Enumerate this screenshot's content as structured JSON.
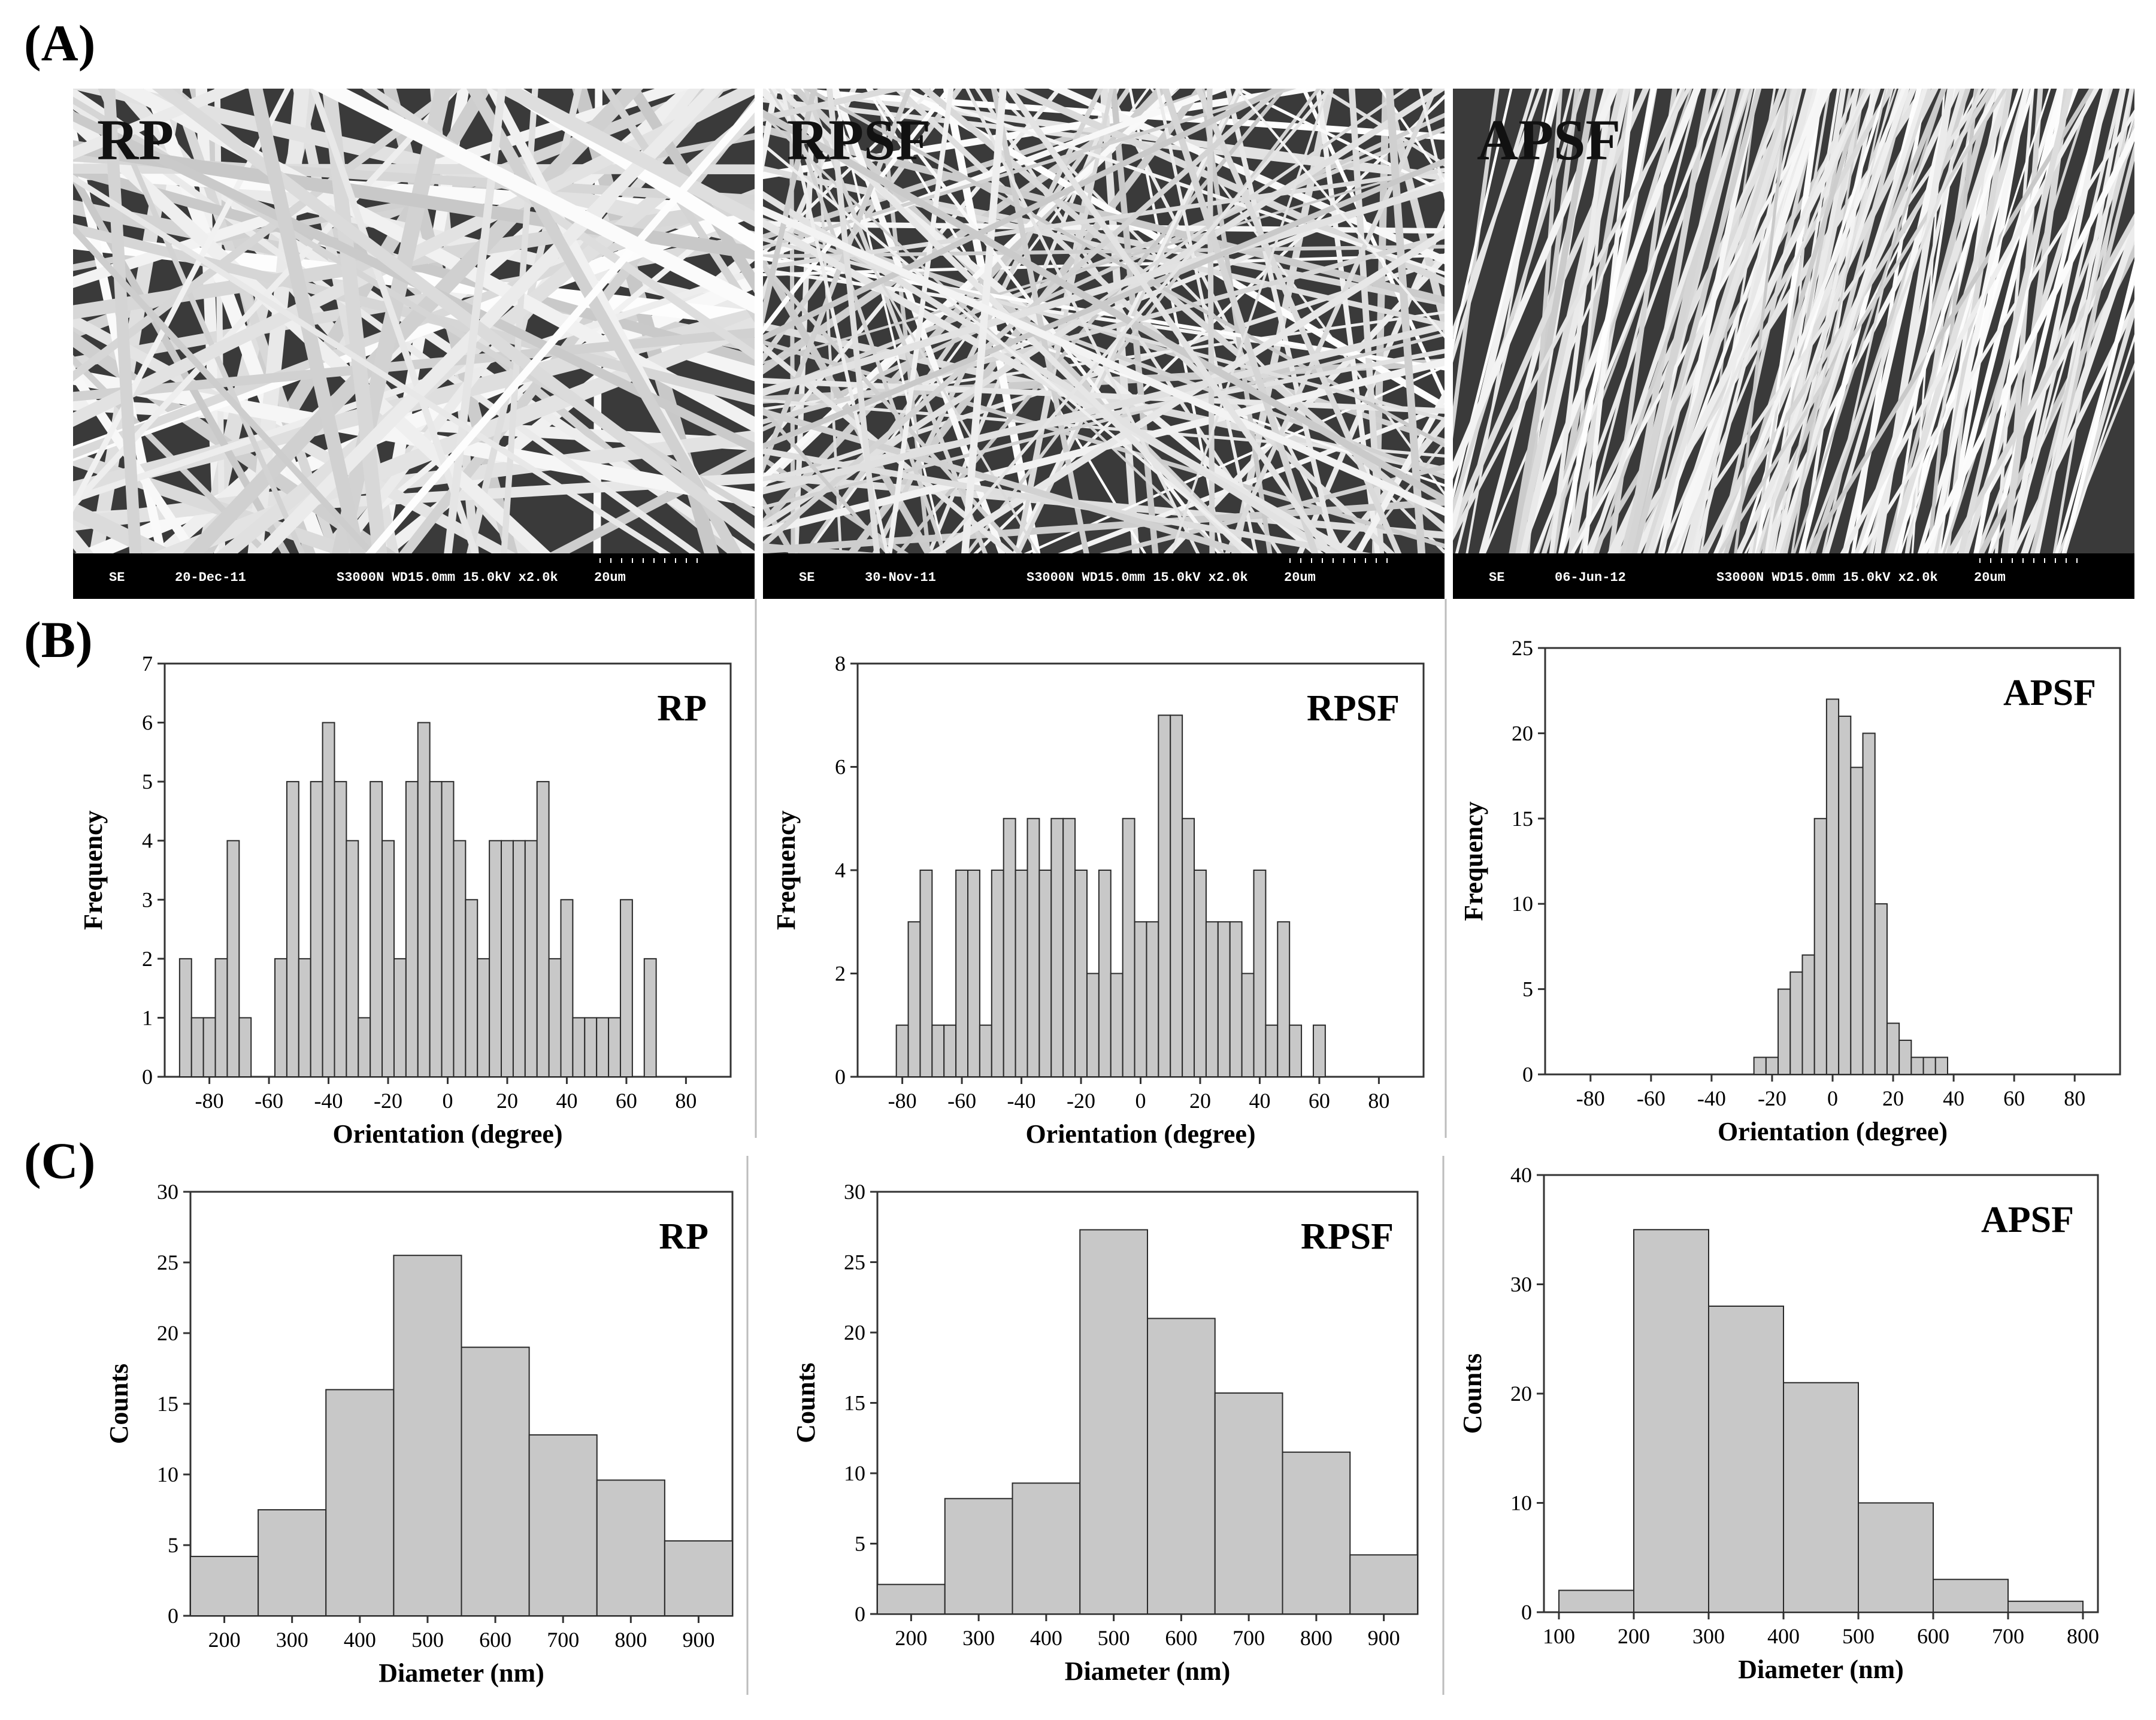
{
  "figure": {
    "row_labels": {
      "a": "(A)",
      "b": "(B)",
      "c": "(C)"
    }
  },
  "sem_images": [
    {
      "name": "RP",
      "caption": {
        "mode": "SE",
        "date": "20-Dec-11",
        "info": "S3000N WD15.0mm 15.0kV x2.0k",
        "scale": "20um"
      },
      "pattern": "random-thick"
    },
    {
      "name": "RPSF",
      "caption": {
        "mode": "SE",
        "date": "30-Nov-11",
        "info": "S3000N WD15.0mm 15.0kV x2.0k",
        "scale": "20um"
      },
      "pattern": "random-thin"
    },
    {
      "name": "APSF",
      "caption": {
        "mode": "SE",
        "date": "06-Jun-12",
        "info": "S3000N WD15.0mm 15.0kV x2.0k",
        "scale": "20um"
      },
      "pattern": "aligned"
    }
  ],
  "chart_data": [
    {
      "type": "bar",
      "row": "B",
      "title": "RP",
      "xlabel": "Orientation (degree)",
      "ylabel": "Frequency",
      "xlim": [
        -95,
        95
      ],
      "ylim": [
        0,
        7
      ],
      "xticks": [
        -80,
        -60,
        -40,
        -20,
        0,
        20,
        40,
        60,
        80
      ],
      "yticks": [
        0,
        1,
        2,
        3,
        4,
        5,
        6,
        7
      ],
      "bin_width": 4,
      "x": [
        -88,
        -84,
        -80,
        -76,
        -72,
        -68,
        -64,
        -56,
        -52,
        -48,
        -44,
        -40,
        -36,
        -32,
        -28,
        -24,
        -20,
        -16,
        -12,
        -8,
        -4,
        0,
        4,
        8,
        12,
        16,
        20,
        24,
        28,
        32,
        36,
        40,
        44,
        48,
        52,
        56,
        60,
        64,
        68,
        72,
        76,
        84
      ],
      "values": [
        2,
        1,
        1,
        2,
        4,
        1,
        0,
        2,
        5,
        2,
        5,
        6,
        5,
        4,
        1,
        5,
        4,
        2,
        5,
        6,
        5,
        5,
        4,
        3,
        2,
        4,
        4,
        4,
        4,
        5,
        2,
        3,
        1,
        1,
        1,
        1,
        3,
        0,
        2,
        0,
        0,
        0
      ]
    },
    {
      "type": "bar",
      "row": "B",
      "title": "RPSF",
      "xlabel": "Orientation (degree)",
      "ylabel": "Frequency",
      "xlim": [
        -95,
        95
      ],
      "ylim": [
        0,
        8
      ],
      "xticks": [
        -80,
        -60,
        -40,
        -20,
        0,
        20,
        40,
        60,
        80
      ],
      "yticks": [
        0,
        2,
        4,
        6,
        8
      ],
      "bin_width": 4,
      "x": [
        -80,
        -76,
        -72,
        -68,
        -64,
        -60,
        -56,
        -52,
        -48,
        -44,
        -40,
        -36,
        -32,
        -28,
        -24,
        -20,
        -16,
        -12,
        -8,
        -4,
        0,
        4,
        8,
        12,
        16,
        20,
        24,
        28,
        32,
        36,
        40,
        44,
        48,
        52,
        56,
        60,
        64,
        68,
        72,
        76,
        80,
        84
      ],
      "values": [
        1,
        3,
        4,
        1,
        1,
        4,
        4,
        1,
        4,
        5,
        4,
        5,
        4,
        5,
        5,
        4,
        2,
        4,
        2,
        5,
        3,
        3,
        7,
        7,
        5,
        4,
        3,
        3,
        3,
        2,
        4,
        1,
        3,
        1,
        0,
        1,
        0,
        0,
        0,
        0,
        0,
        0
      ]
    },
    {
      "type": "bar",
      "row": "B",
      "title": "APSF",
      "xlabel": "Orientation (degree)",
      "ylabel": "Frequency",
      "xlim": [
        -95,
        95
      ],
      "ylim": [
        0,
        25
      ],
      "xticks": [
        -80,
        -60,
        -40,
        -20,
        0,
        20,
        40,
        60,
        80
      ],
      "yticks": [
        0,
        5,
        10,
        15,
        20,
        25
      ],
      "bin_width": 4,
      "x": [
        -24,
        -20,
        -16,
        -12,
        -8,
        -4,
        0,
        4,
        8,
        12,
        16,
        20,
        24,
        28,
        32,
        36,
        40
      ],
      "values": [
        1,
        1,
        5,
        6,
        7,
        15,
        22,
        21,
        18,
        20,
        10,
        3,
        2,
        1,
        1,
        1,
        0
      ]
    },
    {
      "type": "bar",
      "row": "C",
      "title": "RP",
      "xlabel": "Diameter (nm)",
      "ylabel": "Counts",
      "xlim": [
        150,
        950
      ],
      "ylim": [
        0,
        30
      ],
      "xticks": [
        200,
        300,
        400,
        500,
        600,
        700,
        800,
        900
      ],
      "yticks": [
        0,
        5,
        10,
        15,
        20,
        25,
        30
      ],
      "bin_width": 100,
      "x": [
        200,
        300,
        400,
        500,
        600,
        700,
        800,
        900
      ],
      "values": [
        4.2,
        7.5,
        16,
        25.5,
        19,
        12.8,
        9.6,
        5.3
      ]
    },
    {
      "type": "bar",
      "row": "C",
      "title": "RPSF",
      "xlabel": "Diameter (nm)",
      "ylabel": "Counts",
      "xlim": [
        150,
        950
      ],
      "ylim": [
        0,
        30
      ],
      "xticks": [
        200,
        300,
        400,
        500,
        600,
        700,
        800,
        900
      ],
      "yticks": [
        0,
        5,
        10,
        15,
        20,
        25,
        30
      ],
      "bin_width": 100,
      "x": [
        200,
        300,
        400,
        500,
        600,
        700,
        800,
        900
      ],
      "values": [
        2.1,
        8.2,
        9.3,
        27.3,
        21,
        15.7,
        11.5,
        4.2
      ]
    },
    {
      "type": "bar",
      "row": "C",
      "title": "APSF",
      "xlabel": "Diameter (nm)",
      "ylabel": "Counts",
      "xlim": [
        80,
        820
      ],
      "ylim": [
        0,
        40
      ],
      "xticks": [
        100,
        200,
        300,
        400,
        500,
        600,
        700,
        800
      ],
      "yticks": [
        0,
        10,
        20,
        30,
        40
      ],
      "bin_width": 100,
      "x": [
        150,
        250,
        350,
        450,
        550,
        650,
        750
      ],
      "values": [
        2,
        35,
        28,
        21,
        10,
        3,
        1
      ]
    }
  ]
}
